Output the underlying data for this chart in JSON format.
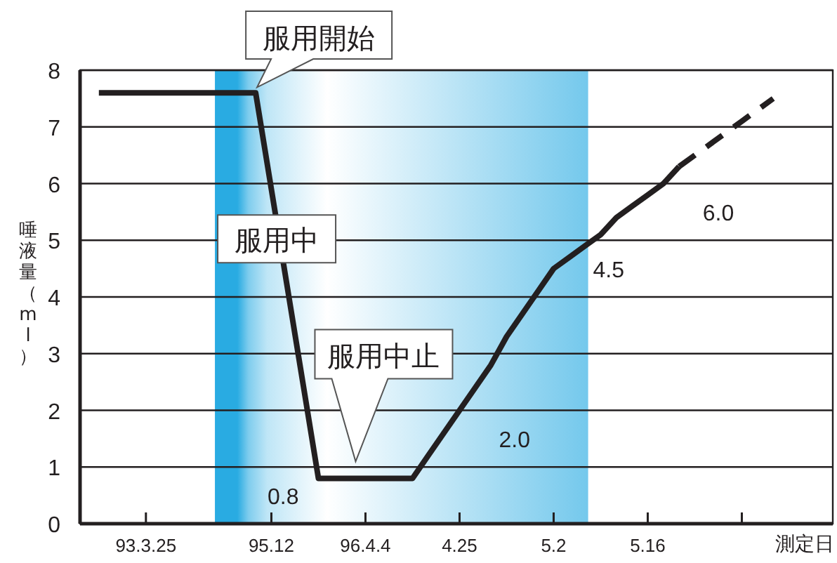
{
  "chart_data": {
    "type": "line",
    "ylabel": "唾液量（ml）",
    "xlabel": "測定日",
    "categories": [
      null,
      null,
      null,
      "93.3.25",
      null,
      null,
      null,
      null,
      null,
      null,
      null,
      "95.12",
      null,
      null,
      null,
      null,
      null,
      "96.4.4",
      null,
      null,
      null,
      null,
      null,
      "4.25",
      null,
      null,
      null,
      null,
      null,
      "5.2",
      null,
      null,
      null,
      null,
      null,
      "5.16",
      null,
      null,
      null,
      null,
      null,
      null,
      null,
      null
    ],
    "ylim": [
      0,
      8
    ],
    "yticks": [
      0,
      1,
      2,
      3,
      4,
      5,
      6,
      7,
      8
    ],
    "grid": "y",
    "marker": "none",
    "series": [
      {
        "color": "#231f20",
        "line_style": "solid",
        "values": [
          7.6,
          7.6,
          7.6,
          7.6,
          7.6,
          7.6,
          7.6,
          7.6,
          7.6,
          7.6,
          7.6,
          5.9,
          4.2,
          2.5,
          0.8,
          0.8,
          0.8,
          0.8,
          0.8,
          0.8,
          0.8,
          1.2,
          1.6,
          2.0,
          2.4,
          2.8,
          3.3,
          3.7,
          4.1,
          4.5,
          4.7,
          4.9,
          5.1,
          5.4,
          5.6,
          5.8,
          6.0,
          6.3,
          null,
          null,
          null,
          null,
          null,
          null
        ],
        "value_labels": [
          null,
          null,
          null,
          null,
          null,
          null,
          null,
          null,
          null,
          null,
          null,
          null,
          null,
          null,
          "0.8",
          null,
          null,
          null,
          null,
          null,
          null,
          null,
          null,
          "2.0",
          null,
          null,
          null,
          null,
          null,
          "4.5",
          null,
          null,
          null,
          null,
          null,
          null,
          "6.0",
          null,
          null,
          null,
          null,
          null,
          null,
          null
        ]
      },
      {
        "color": "#231f20",
        "line_style": "dashed",
        "values": [
          null,
          null,
          null,
          null,
          null,
          null,
          null,
          null,
          null,
          null,
          null,
          null,
          null,
          null,
          null,
          null,
          null,
          null,
          null,
          null,
          null,
          null,
          null,
          null,
          null,
          null,
          null,
          null,
          null,
          null,
          null,
          null,
          null,
          null,
          null,
          null,
          null,
          6.3,
          6.5,
          6.7,
          6.9,
          7.1,
          7.3,
          7.5
        ]
      }
    ],
    "annotations": [
      "服用開始",
      "服用中",
      "服用中止"
    ]
  }
}
